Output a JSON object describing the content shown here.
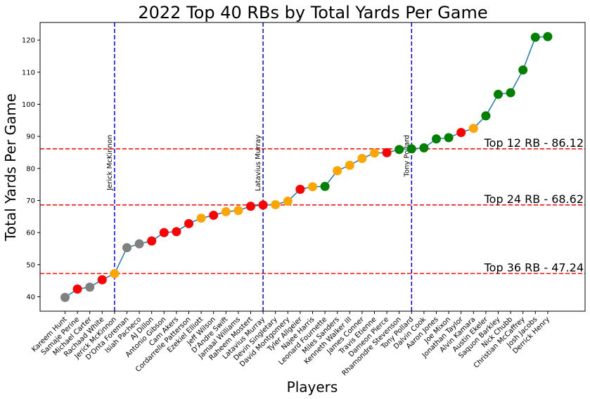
{
  "chart_data": {
    "type": "line",
    "title": "2022 Top 40 RBs by Total Yards Per Game",
    "xlabel": "Players",
    "ylabel": "Total Yards Per Game",
    "ylim": [
      35.5,
      125.5
    ],
    "yticks": [
      40,
      50,
      60,
      70,
      80,
      90,
      100,
      110,
      120
    ],
    "grid": false,
    "line_color": "#1f77b4",
    "colors": {
      "green": "#008000",
      "orange": "#ffa500",
      "red": "#ff0000",
      "gray": "#808080"
    },
    "players": [
      "Kareem Hunt",
      "Samaje Perine",
      "Michael Carter",
      "Rachaad White",
      "Jerick McKinnon",
      "D'Onta Foreman",
      "Isiah Pacheco",
      "AJ Dillon",
      "Antonio Gibson",
      "Cam Akers",
      "Cordarrelle Patterson",
      "Ezekiel Elliott",
      "Jeff Wilson",
      "D'Andre Swift",
      "Jamaal Williams",
      "Raheem Mostert",
      "Latavius Murray",
      "Devin Singletary",
      "David Montgomery",
      "Tyler Allgeier",
      "Najee Harris",
      "Leonard Fournette",
      "Miles Sanders",
      "Kenneth Walker III",
      "James Conner",
      "Travis Etienne",
      "Dameon Pierce",
      "Rhamondre Stevenson",
      "Tony Pollard",
      "Dalvin Cook",
      "Aaron Jones",
      "Joe Mixon",
      "Jonathan Taylor",
      "Alvin Kamara",
      "Austin Ekeler",
      "Saquon Barkley",
      "Nick Chubb",
      "Christian McCaffrey",
      "Josh Jacobs",
      "Derrick Henry"
    ],
    "values": [
      39.8,
      42.4,
      43.0,
      45.3,
      47.2,
      55.3,
      56.5,
      57.4,
      60.0,
      60.3,
      62.8,
      64.5,
      65.4,
      66.5,
      66.9,
      68.2,
      68.6,
      68.7,
      69.8,
      73.5,
      74.3,
      74.4,
      79.3,
      81.0,
      83.1,
      84.8,
      84.9,
      85.9,
      86.1,
      86.4,
      89.2,
      89.6,
      91.2,
      92.5,
      96.4,
      103.1,
      103.6,
      110.7,
      120.9,
      121.1
    ],
    "point_colors": [
      "gray",
      "red",
      "gray",
      "red",
      "orange",
      "gray",
      "gray",
      "red",
      "red",
      "red",
      "red",
      "orange",
      "red",
      "orange",
      "orange",
      "red",
      "red",
      "orange",
      "orange",
      "red",
      "orange",
      "green",
      "orange",
      "orange",
      "orange",
      "orange",
      "red",
      "green",
      "green",
      "green",
      "green",
      "green",
      "red",
      "orange",
      "green",
      "green",
      "green",
      "green",
      "green",
      "green"
    ],
    "vlines": [
      {
        "x_index": 4,
        "label": "Jerick McKinnon",
        "color": "#0000ff"
      },
      {
        "x_index": 16,
        "label": "Latavius Murray",
        "color": "#0000ff"
      },
      {
        "x_index": 28,
        "label": "Tony Pollard",
        "color": "#0000ff"
      }
    ],
    "hlines": [
      {
        "y": 86.12,
        "label": "Top 12 RB - 86.12",
        "color": "#ff0000"
      },
      {
        "y": 68.62,
        "label": "Top 24 RB - 68.62",
        "color": "#ff0000"
      },
      {
        "y": 47.24,
        "label": "Top 36 RB - 47.24",
        "color": "#ff0000"
      }
    ]
  }
}
